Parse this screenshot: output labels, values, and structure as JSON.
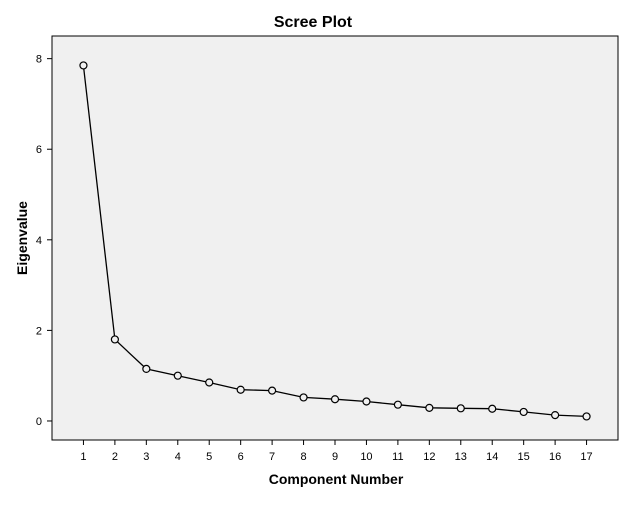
{
  "chart_data": {
    "type": "line",
    "title": "Scree Plot",
    "xlabel": "Component Number",
    "ylabel": "Eigenvalue",
    "x": [
      1,
      2,
      3,
      4,
      5,
      6,
      7,
      8,
      9,
      10,
      11,
      12,
      13,
      14,
      15,
      16,
      17
    ],
    "values": [
      7.85,
      1.8,
      1.15,
      1.0,
      0.85,
      0.69,
      0.67,
      0.52,
      0.48,
      0.43,
      0.36,
      0.29,
      0.28,
      0.27,
      0.2,
      0.13,
      0.1
    ],
    "x_ticks": [
      "1",
      "2",
      "3",
      "4",
      "5",
      "6",
      "7",
      "8",
      "9",
      "10",
      "11",
      "12",
      "13",
      "14",
      "15",
      "16",
      "17"
    ],
    "y_ticks": [
      0,
      2,
      4,
      6,
      8
    ],
    "xlim": [
      0,
      18
    ],
    "ylim": [
      -0.42,
      8.5
    ],
    "grid": false,
    "marker": "open-circle",
    "colors": {
      "plot_background": "#f0f0f0",
      "line": "#000000",
      "axis": "#000000"
    }
  }
}
